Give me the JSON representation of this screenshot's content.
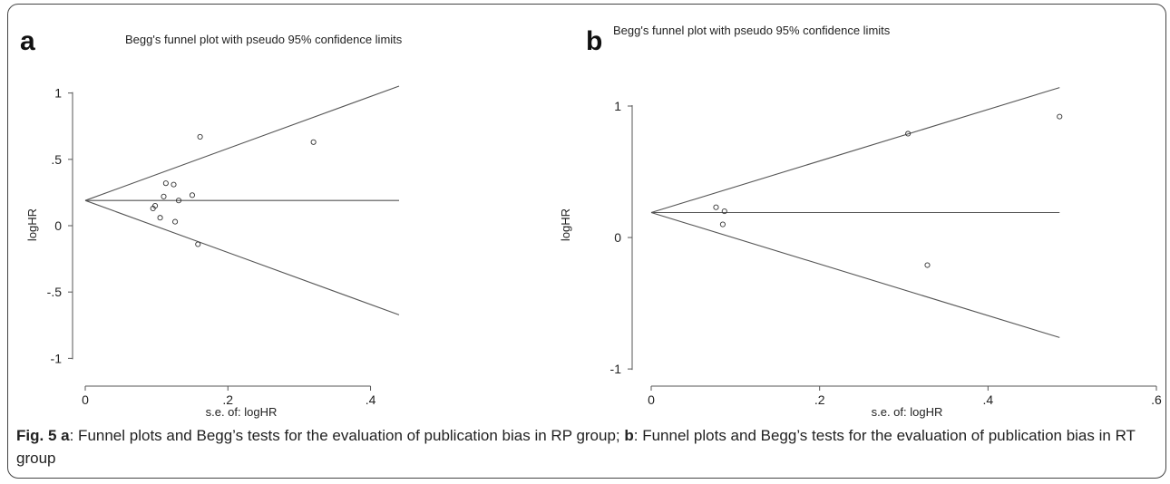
{
  "chart_data": [
    {
      "type": "scatter",
      "panel_label": "a",
      "title": "Begg's funnel plot with pseudo 95% confidence limits",
      "xlabel": "s.e. of: logHR",
      "ylabel": "logHR",
      "xlim": [
        0,
        0.44
      ],
      "ylim": [
        -1.1,
        1.1
      ],
      "x_ticks": [
        {
          "value": 0,
          "label": "0"
        },
        {
          "value": 0.2,
          "label": ".2"
        },
        {
          "value": 0.4,
          "label": ".4"
        }
      ],
      "y_ticks": [
        {
          "value": 1,
          "label": "1"
        },
        {
          "value": 0.5,
          "label": ".5"
        },
        {
          "value": 0,
          "label": "0"
        },
        {
          "value": -0.5,
          "label": "-.5"
        },
        {
          "value": -1,
          "label": "-1"
        }
      ],
      "pooled_estimate": 0.19,
      "funnel_slope": 1.96,
      "line_x_end": 0.44,
      "points": [
        {
          "x": 0.095,
          "y": 0.13
        },
        {
          "x": 0.098,
          "y": 0.15
        },
        {
          "x": 0.105,
          "y": 0.06
        },
        {
          "x": 0.11,
          "y": 0.22
        },
        {
          "x": 0.113,
          "y": 0.32
        },
        {
          "x": 0.124,
          "y": 0.31
        },
        {
          "x": 0.126,
          "y": 0.03
        },
        {
          "x": 0.131,
          "y": 0.19
        },
        {
          "x": 0.15,
          "y": 0.23
        },
        {
          "x": 0.158,
          "y": -0.14
        },
        {
          "x": 0.161,
          "y": 0.67
        },
        {
          "x": 0.32,
          "y": 0.63
        }
      ]
    },
    {
      "type": "scatter",
      "panel_label": "b",
      "title": "Begg's funnel plot with pseudo 95% confidence limits",
      "xlabel": "s.e. of: logHR",
      "ylabel": "logHR",
      "xlim": [
        0,
        0.6
      ],
      "ylim": [
        -1.02,
        1.2
      ],
      "x_ticks": [
        {
          "value": 0,
          "label": "0"
        },
        {
          "value": 0.2,
          "label": ".2"
        },
        {
          "value": 0.4,
          "label": ".4"
        },
        {
          "value": 0.6,
          "label": ".6"
        }
      ],
      "y_ticks": [
        {
          "value": 1,
          "label": "1"
        },
        {
          "value": 0,
          "label": "0"
        },
        {
          "value": -1,
          "label": "-1"
        }
      ],
      "pooled_estimate": 0.19,
      "funnel_slope": 1.96,
      "line_x_end": 0.485,
      "points": [
        {
          "x": 0.077,
          "y": 0.23
        },
        {
          "x": 0.085,
          "y": 0.1
        },
        {
          "x": 0.087,
          "y": 0.2
        },
        {
          "x": 0.305,
          "y": 0.79
        },
        {
          "x": 0.328,
          "y": -0.21
        },
        {
          "x": 0.485,
          "y": 0.92
        }
      ]
    }
  ],
  "caption": {
    "fig_label": "Fig. 5",
    "a_label": "a",
    "a_text": ": Funnel plots and Begg’s tests for the evaluation of publication bias in RP group; ",
    "b_label": "b",
    "b_text": ": Funnel plots and Begg’s tests for the evaluation of publication bias in RT group"
  }
}
